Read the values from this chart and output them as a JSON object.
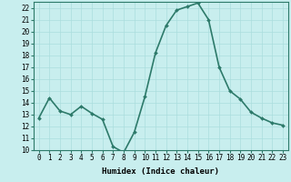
{
  "x": [
    0,
    1,
    2,
    3,
    4,
    5,
    6,
    7,
    8,
    9,
    10,
    11,
    12,
    13,
    14,
    15,
    16,
    17,
    18,
    19,
    20,
    21,
    22,
    23
  ],
  "y": [
    12.7,
    14.4,
    13.3,
    13.0,
    13.7,
    13.1,
    12.6,
    10.3,
    9.8,
    11.5,
    14.5,
    18.2,
    20.5,
    21.8,
    22.1,
    22.4,
    21.0,
    17.0,
    15.0,
    14.3,
    13.2,
    12.7,
    12.3,
    12.1
  ],
  "xlim": [
    -0.5,
    23.5
  ],
  "ylim": [
    10,
    22.5
  ],
  "yticks": [
    10,
    11,
    12,
    13,
    14,
    15,
    16,
    17,
    18,
    19,
    20,
    21,
    22
  ],
  "xticks": [
    0,
    1,
    2,
    3,
    4,
    5,
    6,
    7,
    8,
    9,
    10,
    11,
    12,
    13,
    14,
    15,
    16,
    17,
    18,
    19,
    20,
    21,
    22,
    23
  ],
  "xlabel": "Humidex (Indice chaleur)",
  "line_color": "#2d7a6a",
  "marker_color": "#2d7a6a",
  "bg_color": "#c8eeee",
  "grid_color": "#aadddd",
  "xlabel_fontsize": 6.5,
  "tick_fontsize": 5.5,
  "line_width": 1.2,
  "marker_size": 2.0,
  "spine_color": "#2d7a6a"
}
